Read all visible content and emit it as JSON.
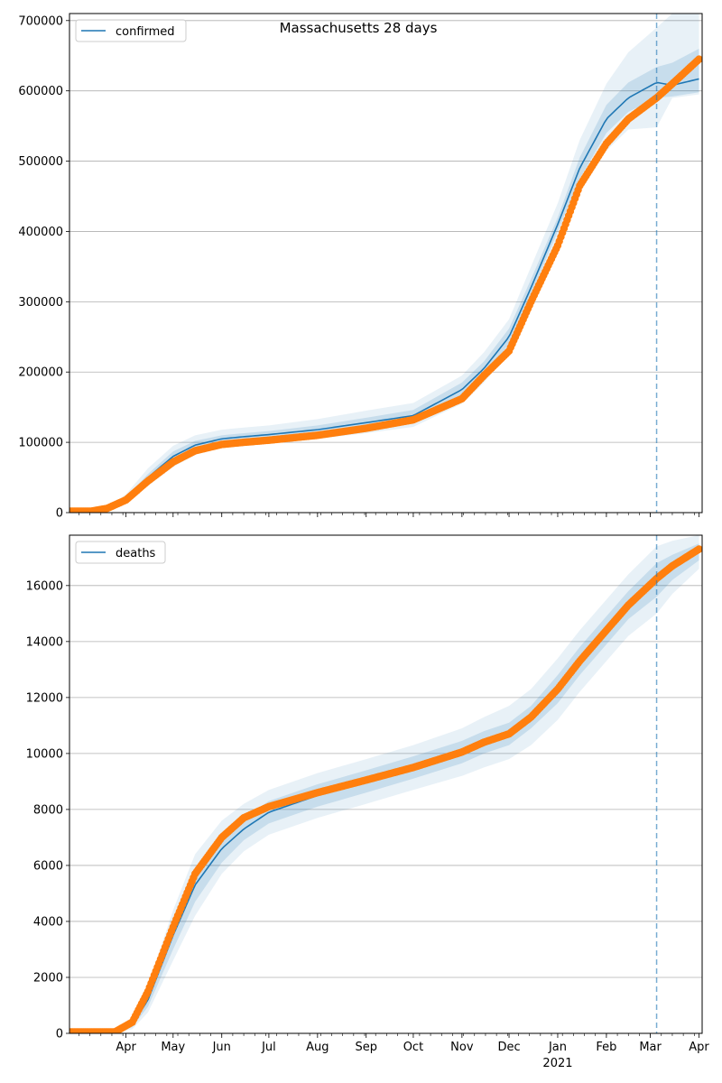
{
  "figure": {
    "title": "Massachusetts 28 days"
  },
  "chart_data": [
    {
      "type": "line",
      "panel": "top",
      "legend": {
        "label": "confirmed",
        "placement": "top-left"
      },
      "grid": "horizontal",
      "ylim": [
        0,
        710000
      ],
      "yticks": [
        0,
        100000,
        200000,
        300000,
        400000,
        500000,
        600000,
        700000
      ],
      "ytick_labels": [
        "0",
        "100000",
        "200000",
        "300000",
        "400000",
        "500000",
        "600000",
        "700000"
      ],
      "forecast_start": "2021-03-05",
      "series": [
        {
          "name": "confirmed",
          "role": "model",
          "color": "#1f77b4",
          "x": [
            "2020-02-25",
            "2020-03-20",
            "2020-04-01",
            "2020-04-15",
            "2020-05-01",
            "2020-05-15",
            "2020-06-01",
            "2020-06-15",
            "2020-07-01",
            "2020-08-01",
            "2020-09-01",
            "2020-10-01",
            "2020-11-01",
            "2020-11-15",
            "2020-12-01",
            "2020-12-15",
            "2021-01-01",
            "2021-01-15",
            "2021-02-01",
            "2021-02-15",
            "2021-03-05",
            "2021-03-15",
            "2021-04-01"
          ],
          "values": [
            0,
            5000,
            20000,
            50000,
            80000,
            96000,
            105000,
            108000,
            111000,
            118000,
            128000,
            138000,
            175000,
            205000,
            250000,
            320000,
            410000,
            490000,
            560000,
            590000,
            612000,
            608000,
            617000
          ]
        },
        {
          "name": "observed",
          "role": "observed",
          "color": "#ff7f0e",
          "x": [
            "2020-02-25",
            "2020-03-10",
            "2020-03-20",
            "2020-04-01",
            "2020-04-15",
            "2020-05-01",
            "2020-05-15",
            "2020-06-01",
            "2020-06-15",
            "2020-07-01",
            "2020-08-01",
            "2020-09-01",
            "2020-10-01",
            "2020-11-01",
            "2020-11-15",
            "2020-12-01",
            "2020-12-15",
            "2021-01-01",
            "2021-01-15",
            "2021-02-01",
            "2021-02-15",
            "2021-03-05",
            "2021-03-15",
            "2021-04-01"
          ],
          "values": [
            2000,
            2000,
            6000,
            18000,
            45000,
            72000,
            88000,
            97000,
            100000,
            103000,
            110000,
            120000,
            132000,
            162000,
            195000,
            230000,
            300000,
            380000,
            465000,
            525000,
            560000,
            590000,
            610000,
            645000
          ]
        }
      ],
      "bands": {
        "inner": {
          "lower": [
            0,
            4000,
            18000,
            45000,
            73000,
            90000,
            100000,
            103000,
            106000,
            112000,
            121000,
            130000,
            165000,
            195000,
            240000,
            310000,
            400000,
            475000,
            540000,
            570000,
            590000,
            592000,
            598000
          ],
          "upper": [
            0,
            6000,
            22000,
            55000,
            87000,
            102000,
            110000,
            113000,
            116000,
            124000,
            135000,
            146000,
            185000,
            215000,
            262000,
            332000,
            420000,
            505000,
            580000,
            612000,
            634000,
            640000,
            660000
          ]
        },
        "outer": {
          "lower": [
            0,
            3000,
            14000,
            38000,
            65000,
            82000,
            93000,
            97000,
            100000,
            105000,
            113000,
            122000,
            155000,
            185000,
            228000,
            295000,
            385000,
            455000,
            515000,
            545000,
            548000,
            590000,
            595000
          ],
          "upper": [
            0,
            7000,
            26000,
            63000,
            95000,
            110000,
            118000,
            121000,
            124000,
            133000,
            145000,
            156000,
            195000,
            228000,
            275000,
            350000,
            440000,
            530000,
            610000,
            655000,
            690000,
            710000,
            710000
          ]
        }
      }
    },
    {
      "type": "line",
      "panel": "bottom",
      "legend": {
        "label": "deaths",
        "placement": "top-left"
      },
      "grid": "horizontal",
      "ylim": [
        0,
        17800
      ],
      "yticks": [
        0,
        2000,
        4000,
        6000,
        8000,
        10000,
        12000,
        14000,
        16000
      ],
      "ytick_labels": [
        "0",
        "2000",
        "4000",
        "6000",
        "8000",
        "10000",
        "12000",
        "14000",
        "16000"
      ],
      "forecast_start": "2021-03-05",
      "xtick_labels": [
        "Apr",
        "May",
        "Jun",
        "Jul",
        "Aug",
        "Sep",
        "Oct",
        "Nov",
        "Dec",
        "Jan",
        "Feb",
        "Mar",
        "Apr"
      ],
      "xtick_dates": [
        "2020-04-01",
        "2020-05-01",
        "2020-06-01",
        "2020-07-01",
        "2020-08-01",
        "2020-09-01",
        "2020-10-01",
        "2020-11-01",
        "2020-12-01",
        "2021-01-01",
        "2021-02-01",
        "2021-03-01",
        "2021-04-01"
      ],
      "year_label": "2021",
      "series": [
        {
          "name": "deaths",
          "role": "model",
          "color": "#1f77b4",
          "x": [
            "2020-02-25",
            "2020-03-25",
            "2020-04-05",
            "2020-04-15",
            "2020-05-01",
            "2020-05-15",
            "2020-06-01",
            "2020-06-15",
            "2020-07-01",
            "2020-08-01",
            "2020-09-01",
            "2020-10-01",
            "2020-11-01",
            "2020-11-15",
            "2020-12-01",
            "2020-12-15",
            "2021-01-01",
            "2021-01-15",
            "2021-02-01",
            "2021-02-15",
            "2021-03-05",
            "2021-03-15",
            "2021-04-01"
          ],
          "values": [
            0,
            50,
            300,
            1200,
            3500,
            5300,
            6600,
            7300,
            7900,
            8500,
            9000,
            9500,
            10050,
            10400,
            10700,
            11300,
            12300,
            13300,
            14400,
            15300,
            16200,
            16650,
            17200
          ]
        },
        {
          "name": "observed",
          "role": "observed",
          "color": "#ff7f0e",
          "x": [
            "2020-02-25",
            "2020-03-25",
            "2020-04-05",
            "2020-04-15",
            "2020-05-01",
            "2020-05-15",
            "2020-06-01",
            "2020-06-15",
            "2020-07-01",
            "2020-08-01",
            "2020-09-01",
            "2020-10-01",
            "2020-11-01",
            "2020-11-15",
            "2020-12-01",
            "2020-12-15",
            "2021-01-01",
            "2021-01-15",
            "2021-02-01",
            "2021-02-15",
            "2021-03-05",
            "2021-03-15",
            "2021-04-01"
          ],
          "values": [
            50,
            50,
            400,
            1500,
            3800,
            5700,
            7000,
            7700,
            8100,
            8600,
            9050,
            9500,
            10050,
            10400,
            10700,
            11300,
            12300,
            13300,
            14400,
            15300,
            16250,
            16700,
            17300
          ]
        }
      ],
      "bands": {
        "inner": {
          "lower": [
            0,
            30,
            220,
            950,
            3000,
            4700,
            6100,
            6900,
            7500,
            8100,
            8600,
            9100,
            9650,
            10000,
            10300,
            10900,
            11800,
            12800,
            13900,
            14800,
            15600,
            16200,
            16900
          ],
          "upper": [
            0,
            70,
            380,
            1450,
            4000,
            5900,
            7100,
            7700,
            8300,
            8900,
            9400,
            9900,
            10450,
            10800,
            11100,
            11700,
            12800,
            13800,
            14900,
            15800,
            16800,
            17100,
            17500
          ]
        },
        "outer": {
          "lower": [
            0,
            20,
            150,
            750,
            2600,
            4200,
            5700,
            6500,
            7100,
            7700,
            8200,
            8700,
            9200,
            9500,
            9800,
            10300,
            11200,
            12200,
            13300,
            14200,
            15000,
            15700,
            16600
          ],
          "upper": [
            0,
            90,
            450,
            1700,
            4400,
            6400,
            7600,
            8200,
            8700,
            9300,
            9800,
            10300,
            10900,
            11300,
            11700,
            12300,
            13400,
            14400,
            15500,
            16400,
            17400,
            17600,
            17800
          ]
        }
      }
    }
  ]
}
